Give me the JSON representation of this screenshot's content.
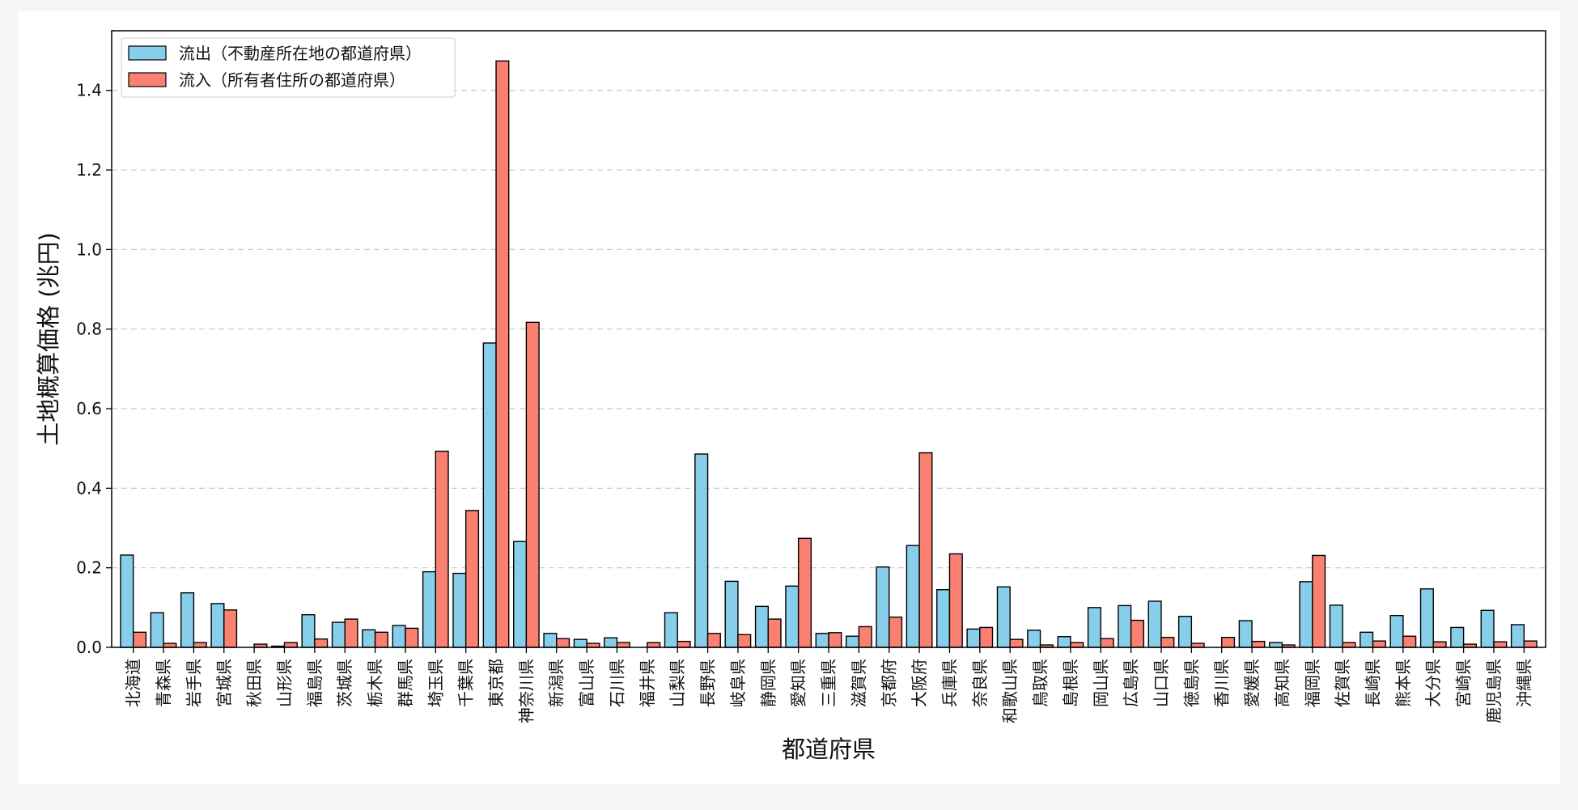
{
  "chart_data": {
    "type": "bar",
    "xlabel": "都道府県",
    "ylabel": "土地概算価格 (兆円)",
    "ylim": [
      0,
      1.55
    ],
    "yticks": [
      0.0,
      0.2,
      0.4,
      0.6,
      0.8,
      1.0,
      1.2,
      1.4
    ],
    "ytick_labels": [
      "0.0",
      "0.2",
      "0.4",
      "0.6",
      "0.8",
      "1.0",
      "1.2",
      "1.4"
    ],
    "grid": "horizontal dashed",
    "legend_position": "top-left",
    "categories": [
      "北海道",
      "青森県",
      "岩手県",
      "宮城県",
      "秋田県",
      "山形県",
      "福島県",
      "茨城県",
      "栃木県",
      "群馬県",
      "埼玉県",
      "千葉県",
      "東京都",
      "神奈川県",
      "新潟県",
      "富山県",
      "石川県",
      "福井県",
      "山梨県",
      "長野県",
      "岐阜県",
      "静岡県",
      "愛知県",
      "三重県",
      "滋賀県",
      "京都府",
      "大阪府",
      "兵庫県",
      "奈良県",
      "和歌山県",
      "鳥取県",
      "島根県",
      "岡山県",
      "広島県",
      "山口県",
      "徳島県",
      "香川県",
      "愛媛県",
      "高知県",
      "福岡県",
      "佐賀県",
      "長崎県",
      "熊本県",
      "大分県",
      "宮崎県",
      "鹿児島県",
      "沖縄県"
    ],
    "series": [
      {
        "name": "流出（不動産所在地の都道府県）",
        "color": "#87ceeb",
        "values": [
          0.232,
          0.087,
          0.137,
          0.11,
          0.0,
          0.003,
          0.082,
          0.063,
          0.044,
          0.055,
          0.19,
          0.186,
          0.765,
          0.266,
          0.035,
          0.02,
          0.024,
          0.0,
          0.087,
          0.486,
          0.166,
          0.103,
          0.154,
          0.035,
          0.028,
          0.202,
          0.256,
          0.145,
          0.046,
          0.152,
          0.043,
          0.027,
          0.1,
          0.105,
          0.116,
          0.078,
          0.0,
          0.067,
          0.012,
          0.165,
          0.106,
          0.038,
          0.08,
          0.147,
          0.05,
          0.093,
          0.057
        ]
      },
      {
        "name": "流入（所有者住所の都道府県）",
        "color": "#fa8072",
        "values": [
          0.038,
          0.01,
          0.012,
          0.094,
          0.008,
          0.012,
          0.021,
          0.071,
          0.038,
          0.048,
          0.493,
          0.344,
          1.474,
          0.817,
          0.022,
          0.01,
          0.012,
          0.012,
          0.015,
          0.035,
          0.032,
          0.071,
          0.274,
          0.037,
          0.052,
          0.076,
          0.489,
          0.235,
          0.05,
          0.02,
          0.006,
          0.012,
          0.022,
          0.068,
          0.025,
          0.01,
          0.025,
          0.015,
          0.006,
          0.231,
          0.012,
          0.016,
          0.028,
          0.014,
          0.008,
          0.014,
          0.016
        ]
      }
    ]
  }
}
